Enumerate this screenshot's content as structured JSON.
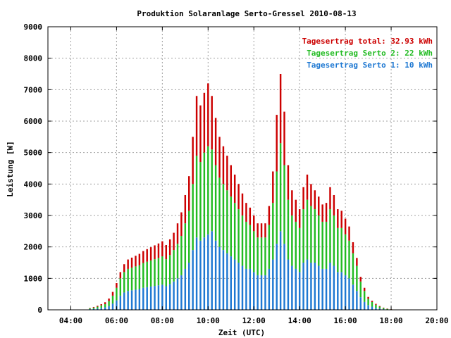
{
  "chart_data": {
    "type": "bar",
    "stacked": true,
    "title": "Produktion Solaranlage Serto-Gressel 2010-08-13",
    "xlabel": "Zeit (UTC)",
    "ylabel": "Leistung [W]",
    "ylim": [
      0,
      9000
    ],
    "xlim": [
      "03:00",
      "20:00"
    ],
    "x_ticks": [
      "04:00",
      "06:00",
      "08:00",
      "10:00",
      "12:00",
      "14:00",
      "16:00",
      "18:00",
      "20:00"
    ],
    "y_ticks": [
      "0",
      "1000",
      "2000",
      "3000",
      "4000",
      "5000",
      "6000",
      "7000",
      "8000",
      "9000"
    ],
    "grid": true,
    "legend_position": "top-right",
    "legend": [
      {
        "label": "Tagesertrag total: 32.93 kWh",
        "color": "#cc0000"
      },
      {
        "label": "Tagesertrag Serto 2: 22 kWh",
        "color": "#22bb22"
      },
      {
        "label": "Tagesertrag Serto 1: 10 kWh",
        "color": "#1e78d2"
      }
    ],
    "x": [
      "04:50",
      "05:00",
      "05:10",
      "05:20",
      "05:30",
      "05:40",
      "05:50",
      "06:00",
      "06:10",
      "06:20",
      "06:30",
      "06:40",
      "06:50",
      "07:00",
      "07:10",
      "07:20",
      "07:30",
      "07:40",
      "07:50",
      "08:00",
      "08:10",
      "08:20",
      "08:30",
      "08:40",
      "08:50",
      "09:00",
      "09:10",
      "09:20",
      "09:30",
      "09:40",
      "09:50",
      "10:00",
      "10:10",
      "10:20",
      "10:30",
      "10:40",
      "10:50",
      "11:00",
      "11:10",
      "11:20",
      "11:30",
      "11:40",
      "11:50",
      "12:00",
      "12:10",
      "12:20",
      "12:30",
      "12:40",
      "12:50",
      "13:00",
      "13:10",
      "13:20",
      "13:30",
      "13:40",
      "13:50",
      "14:00",
      "14:10",
      "14:20",
      "14:30",
      "14:40",
      "14:50",
      "15:00",
      "15:10",
      "15:20",
      "15:30",
      "15:40",
      "15:50",
      "16:00",
      "16:10",
      "16:20",
      "16:30",
      "16:40",
      "16:50",
      "17:00",
      "17:10",
      "17:20",
      "17:30",
      "17:40",
      "17:50",
      "18:00",
      "18:10",
      "18:20",
      "18:30",
      "18:40"
    ],
    "series": [
      {
        "name": "Tagesertrag Serto 1: 10 kWh",
        "color": "#1e78d2",
        "values": [
          20,
          30,
          40,
          60,
          80,
          120,
          200,
          300,
          450,
          550,
          600,
          620,
          640,
          660,
          700,
          720,
          740,
          760,
          780,
          800,
          750,
          820,
          900,
          1000,
          1100,
          1300,
          1500,
          1900,
          2300,
          2200,
          2300,
          2400,
          2500,
          2200,
          2000,
          1900,
          1800,
          1700,
          1600,
          1500,
          1400,
          1300,
          1300,
          1200,
          1100,
          1100,
          1100,
          1300,
          1600,
          2100,
          2500,
          2100,
          1600,
          1400,
          1300,
          1200,
          1500,
          1600,
          1500,
          1500,
          1400,
          1300,
          1300,
          1500,
          1400,
          1200,
          1200,
          1100,
          1000,
          800,
          600,
          400,
          250,
          150,
          100,
          60,
          40,
          20,
          10,
          5,
          0,
          0,
          0,
          0
        ]
      },
      {
        "name": "Tagesertrag Serto 2: 22 kWh",
        "color": "#22bb22",
        "values": [
          30,
          40,
          60,
          80,
          100,
          160,
          250,
          400,
          550,
          650,
          700,
          720,
          740,
          760,
          790,
          810,
          830,
          850,
          870,
          900,
          860,
          920,
          1000,
          1100,
          1250,
          1450,
          1650,
          2100,
          2600,
          2500,
          2700,
          2800,
          2600,
          2400,
          2200,
          2100,
          2000,
          1900,
          1800,
          1700,
          1600,
          1500,
          1400,
          1300,
          1200,
          1200,
          1200,
          1400,
          1800,
          2300,
          2800,
          2500,
          1900,
          1600,
          1500,
          1400,
          1700,
          1900,
          1800,
          1700,
          1600,
          1500,
          1500,
          1700,
          1600,
          1400,
          1400,
          1300,
          1200,
          1000,
          800,
          500,
          350,
          200,
          150,
          100,
          60,
          40,
          20,
          10,
          0,
          0,
          0,
          0
        ]
      },
      {
        "name": "Tagesertrag total: 32.93 kWh",
        "color": "#cc0000",
        "values": [
          10,
          20,
          30,
          40,
          60,
          80,
          120,
          150,
          200,
          250,
          300,
          320,
          340,
          360,
          380,
          400,
          420,
          440,
          460,
          480,
          450,
          500,
          550,
          650,
          750,
          900,
          1100,
          1500,
          1900,
          1800,
          1900,
          2000,
          1700,
          1500,
          1300,
          1200,
          1100,
          1000,
          900,
          800,
          700,
          600,
          550,
          500,
          450,
          450,
          450,
          600,
          1000,
          1800,
          2200,
          1700,
          1100,
          800,
          700,
          600,
          700,
          800,
          700,
          600,
          600,
          550,
          600,
          700,
          650,
          600,
          550,
          500,
          450,
          350,
          250,
          150,
          100,
          60,
          40,
          30,
          20,
          10,
          10,
          5,
          0,
          0,
          0,
          0
        ]
      }
    ]
  }
}
